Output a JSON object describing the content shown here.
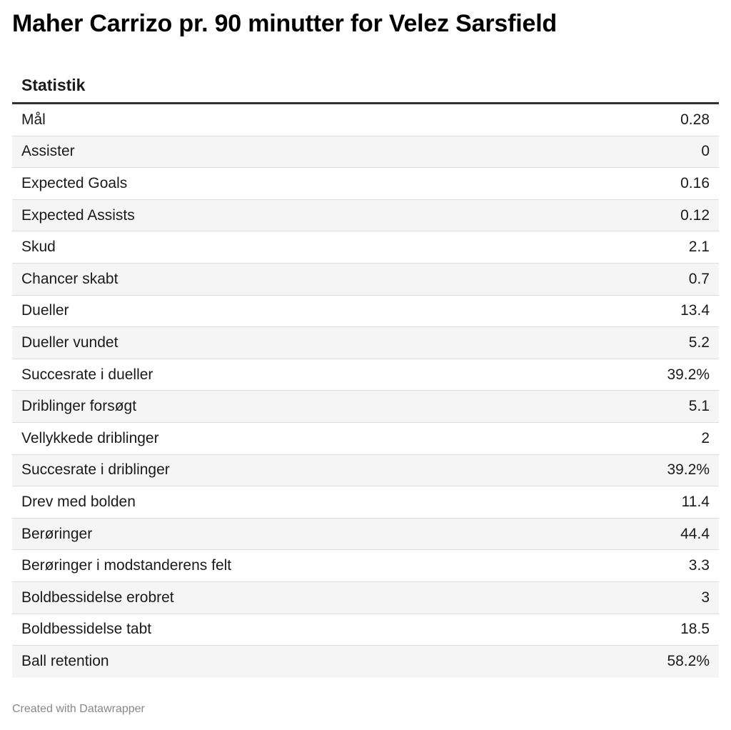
{
  "title": "Maher Carrizo pr. 90 minutter for Velez Sarsfield",
  "footer": "Created with Datawrapper",
  "chart_data": {
    "type": "table",
    "title": "Maher Carrizo pr. 90 minutter for Velez Sarsfield",
    "columns": [
      "Statistik",
      ""
    ],
    "rows": [
      {
        "label": "Mål",
        "value": "0.28"
      },
      {
        "label": "Assister",
        "value": "0"
      },
      {
        "label": "Expected Goals",
        "value": "0.16"
      },
      {
        "label": "Expected Assists",
        "value": "0.12"
      },
      {
        "label": "Skud",
        "value": "2.1"
      },
      {
        "label": "Chancer skabt",
        "value": "0.7"
      },
      {
        "label": "Dueller",
        "value": "13.4"
      },
      {
        "label": "Dueller vundet",
        "value": "5.2"
      },
      {
        "label": "Succesrate i dueller",
        "value": "39.2%"
      },
      {
        "label": "Driblinger forsøgt",
        "value": "5.1"
      },
      {
        "label": "Vellykkede driblinger",
        "value": "2"
      },
      {
        "label": "Succesrate i driblinger",
        "value": "39.2%"
      },
      {
        "label": "Drev med bolden",
        "value": "11.4"
      },
      {
        "label": "Berøringer",
        "value": "44.4"
      },
      {
        "label": "Berøringer i modstanderens felt",
        "value": "3.3"
      },
      {
        "label": "Boldbessidelse erobret",
        "value": "3"
      },
      {
        "label": "Boldbessidelse tabt",
        "value": "18.5"
      },
      {
        "label": "Ball retention",
        "value": "58.2%"
      }
    ]
  }
}
